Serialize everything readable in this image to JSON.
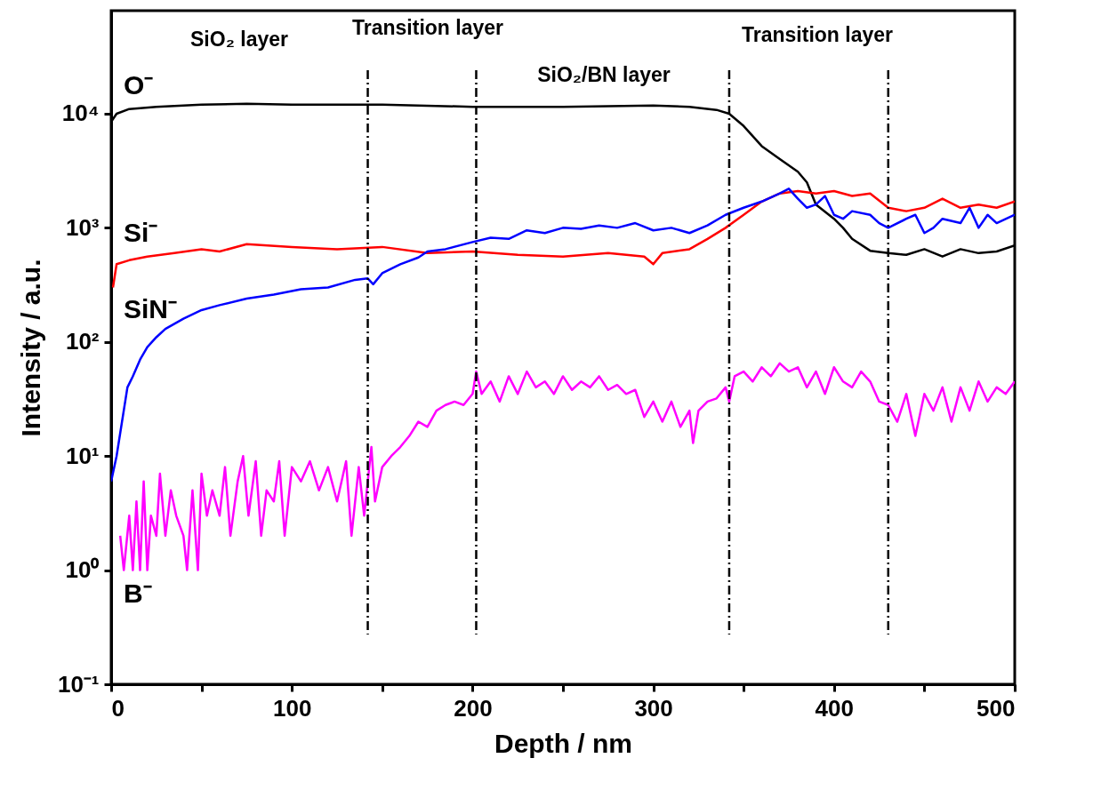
{
  "chart_data": {
    "type": "line",
    "xlabel": "Depth / nm",
    "ylabel": "Intensity / a.u.",
    "annotations": [
      "SiO₂ layer",
      "Transition layer",
      "SiO₂/BN layer",
      "Transition layer"
    ],
    "log": "y",
    "grid": false,
    "line_style": "solid",
    "marker": "none",
    "xlim": [
      0,
      500
    ],
    "xticks": [
      0,
      {
        "value": 50,
        "label": null
      },
      100,
      {
        "value": 150,
        "label": null
      },
      200,
      {
        "value": 250,
        "label": null
      },
      300,
      {
        "value": 350,
        "label": null
      },
      400,
      {
        "value": 450,
        "label": null
      },
      500
    ],
    "ylim": [
      0.1,
      80000
    ],
    "yticks": [
      {
        "value": 0.1,
        "label": "10⁻¹"
      },
      {
        "value": 1,
        "label": "10⁰"
      },
      {
        "value": 10,
        "label": "10¹"
      },
      {
        "value": 100,
        "label": "10²"
      },
      {
        "value": 1000,
        "label": "10³"
      },
      {
        "value": 10000,
        "label": "10⁴"
      }
    ],
    "ref_lines": [
      {
        "axis": "x",
        "value": 142,
        "color": "#000000",
        "line_style": "dashed"
      },
      {
        "axis": "x",
        "value": 202,
        "color": "#000000",
        "line_style": "dashed"
      },
      {
        "axis": "x",
        "value": 342,
        "color": "#000000",
        "line_style": "dashed"
      },
      {
        "axis": "x",
        "value": 430,
        "color": "#000000",
        "line_style": "dashed"
      }
    ],
    "series": [
      {
        "name": "O⁻",
        "color": "#000000",
        "x": [
          0,
          3,
          10,
          25,
          50,
          75,
          100,
          150,
          200,
          250,
          300,
          320,
          335,
          342,
          350,
          360,
          370,
          380,
          385,
          390,
          400,
          405,
          410,
          420,
          430,
          440,
          450,
          460,
          470,
          480,
          490,
          500
        ],
        "values": [
          8500,
          10000,
          11000,
          11500,
          12000,
          12200,
          12000,
          12000,
          11500,
          11500,
          11800,
          11500,
          10800,
          10000,
          7800,
          5200,
          4000,
          3100,
          2500,
          1600,
          1200,
          1000,
          800,
          630,
          600,
          580,
          650,
          560,
          650,
          600,
          620,
          700
        ]
      },
      {
        "name": "Si⁻",
        "color": "#ff0000",
        "x": [
          1,
          3,
          10,
          20,
          35,
          50,
          60,
          75,
          100,
          125,
          150,
          175,
          200,
          225,
          250,
          275,
          295,
          300,
          305,
          320,
          330,
          340,
          350,
          360,
          370,
          380,
          390,
          400,
          410,
          420,
          430,
          440,
          450,
          460,
          470,
          480,
          490,
          500
        ],
        "values": [
          300,
          480,
          520,
          560,
          600,
          650,
          620,
          720,
          680,
          650,
          680,
          600,
          620,
          580,
          560,
          600,
          560,
          480,
          600,
          650,
          800,
          1000,
          1300,
          1700,
          2000,
          2100,
          2000,
          2100,
          1900,
          2000,
          1500,
          1400,
          1500,
          1800,
          1500,
          1600,
          1500,
          1700
        ]
      },
      {
        "name": "SiN⁻",
        "color": "#0000ff",
        "x": [
          0,
          3,
          6,
          9,
          12,
          16,
          20,
          25,
          30,
          40,
          50,
          60,
          75,
          90,
          105,
          120,
          135,
          142,
          145,
          150,
          160,
          170,
          175,
          185,
          200,
          210,
          220,
          230,
          240,
          250,
          260,
          270,
          280,
          290,
          300,
          310,
          320,
          330,
          340,
          350,
          360,
          370,
          375,
          380,
          385,
          390,
          395,
          400,
          405,
          410,
          420,
          425,
          430,
          440,
          445,
          450,
          455,
          460,
          470,
          475,
          480,
          485,
          490,
          500
        ],
        "values": [
          6,
          10,
          20,
          40,
          50,
          70,
          90,
          110,
          130,
          160,
          190,
          210,
          240,
          260,
          290,
          300,
          350,
          360,
          320,
          400,
          480,
          550,
          620,
          650,
          750,
          820,
          800,
          950,
          900,
          1000,
          980,
          1050,
          1000,
          1100,
          950,
          1000,
          900,
          1050,
          1300,
          1500,
          1700,
          2000,
          2200,
          1800,
          1500,
          1600,
          1900,
          1300,
          1200,
          1400,
          1300,
          1100,
          1000,
          1200,
          1300,
          900,
          1000,
          1200,
          1100,
          1500,
          1000,
          1300,
          1100,
          1300
        ]
      },
      {
        "name": "B⁻",
        "color": "#ff00ff",
        "x": [
          5,
          7,
          10,
          12,
          14,
          16,
          18,
          20,
          22,
          25,
          27,
          30,
          33,
          36,
          40,
          42,
          45,
          48,
          50,
          53,
          56,
          60,
          63,
          66,
          70,
          73,
          76,
          80,
          83,
          86,
          90,
          93,
          96,
          100,
          105,
          110,
          115,
          120,
          125,
          130,
          133,
          137,
          140,
          144,
          146,
          150,
          155,
          160,
          165,
          170,
          175,
          180,
          185,
          190,
          195,
          200,
          202,
          205,
          210,
          215,
          220,
          225,
          230,
          235,
          240,
          245,
          250,
          255,
          260,
          265,
          270,
          275,
          280,
          285,
          290,
          295,
          300,
          305,
          310,
          315,
          320,
          322,
          325,
          330,
          335,
          340,
          342,
          345,
          350,
          355,
          360,
          365,
          370,
          375,
          380,
          385,
          390,
          395,
          400,
          405,
          410,
          415,
          420,
          425,
          430,
          435,
          440,
          445,
          450,
          455,
          460,
          465,
          470,
          475,
          480,
          485,
          490,
          495,
          500
        ],
        "values": [
          2,
          1,
          3,
          1,
          4,
          1,
          6,
          1,
          3,
          2,
          7,
          2,
          5,
          3,
          2,
          1,
          5,
          1,
          7,
          3,
          5,
          3,
          8,
          2,
          6,
          10,
          3,
          9,
          2,
          5,
          4,
          9,
          2,
          8,
          6,
          9,
          5,
          8,
          4,
          9,
          2,
          8,
          3,
          12,
          4,
          8,
          10,
          12,
          15,
          20,
          18,
          25,
          28,
          30,
          28,
          35,
          55,
          35,
          45,
          30,
          50,
          35,
          55,
          40,
          45,
          35,
          50,
          38,
          45,
          40,
          50,
          38,
          42,
          35,
          38,
          22,
          30,
          20,
          30,
          18,
          25,
          13,
          25,
          30,
          32,
          40,
          30,
          50,
          55,
          45,
          60,
          50,
          65,
          55,
          60,
          40,
          55,
          35,
          60,
          45,
          40,
          55,
          45,
          30,
          28,
          20,
          35,
          15,
          35,
          25,
          40,
          20,
          40,
          25,
          45,
          30,
          40,
          35,
          45
        ]
      }
    ]
  }
}
